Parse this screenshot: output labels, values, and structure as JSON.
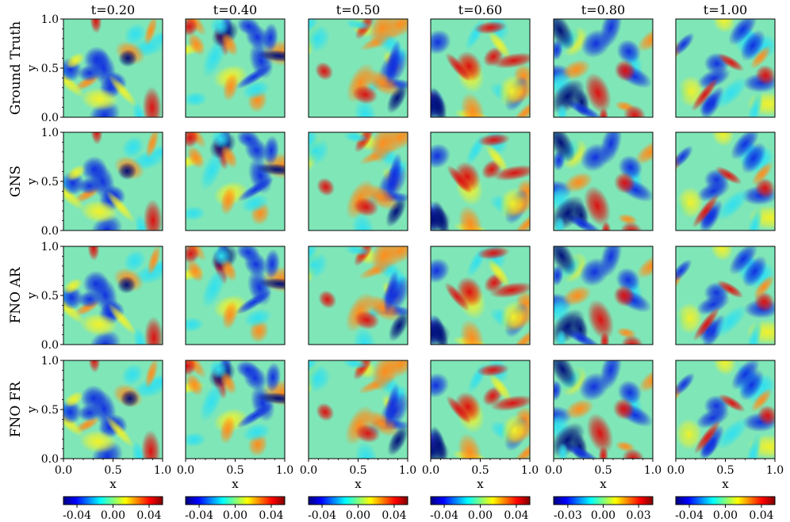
{
  "chart_data": {
    "type": "heatmap",
    "title": "",
    "times": [
      "t=0.20",
      "t=0.40",
      "t=0.50",
      "t=0.60",
      "t=0.80",
      "t=1.00"
    ],
    "rows": [
      "Ground Truth",
      "GNS",
      "FNO AR",
      "FNO FR"
    ],
    "xlabel": "x",
    "ylabel": "y",
    "xlim": [
      0,
      1
    ],
    "ylim": [
      0,
      1
    ],
    "x_ticks": [
      "0.0",
      "0.5",
      "1.0"
    ],
    "y_ticks": [
      "0.0",
      "0.5",
      "1.0"
    ],
    "colormap": "jet",
    "colorbars": [
      {
        "vmin": -0.055,
        "vmax": 0.055,
        "ticks": [
          -0.04,
          0.0,
          0.04
        ],
        "tick_labels": [
          "-0.04",
          "0.00",
          "0.04"
        ]
      },
      {
        "vmin": -0.055,
        "vmax": 0.055,
        "ticks": [
          -0.04,
          0.0,
          0.04
        ],
        "tick_labels": [
          "-0.04",
          "0.00",
          "0.04"
        ]
      },
      {
        "vmin": -0.055,
        "vmax": 0.055,
        "ticks": [
          -0.04,
          0.0,
          0.04
        ],
        "tick_labels": [
          "-0.04",
          "0.00",
          "0.04"
        ]
      },
      {
        "vmin": -0.055,
        "vmax": 0.055,
        "ticks": [
          -0.04,
          0.0,
          0.04
        ],
        "tick_labels": [
          "-0.04",
          "0.00",
          "0.04"
        ]
      },
      {
        "vmin": -0.042,
        "vmax": 0.042,
        "ticks": [
          -0.03,
          0.0,
          0.03
        ],
        "tick_labels": [
          "-0.03",
          "0.00",
          "0.03"
        ]
      },
      {
        "vmin": -0.055,
        "vmax": 0.055,
        "ticks": [
          -0.04,
          0.0,
          0.04
        ],
        "tick_labels": [
          "-0.04",
          "0.00",
          "0.04"
        ]
      }
    ]
  }
}
